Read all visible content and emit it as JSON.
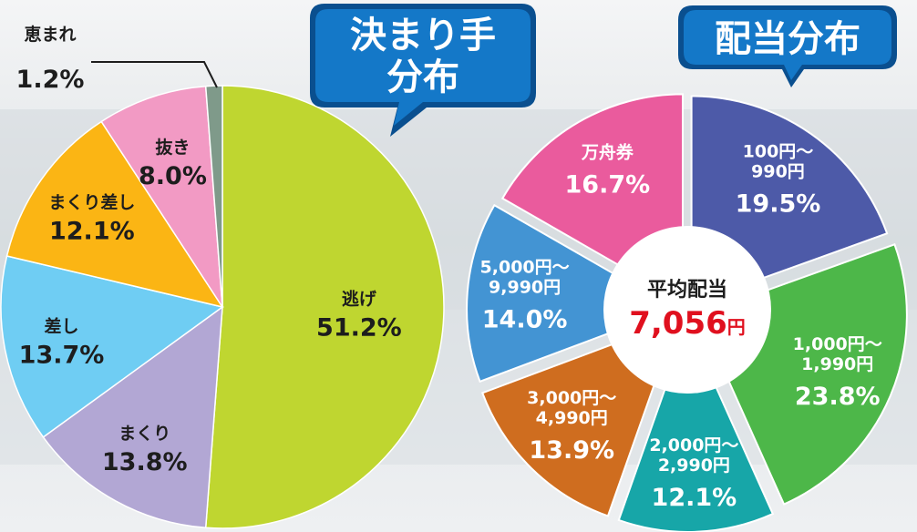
{
  "colors": {
    "bubble": "#1478c8",
    "bubble_dark": "#0a4f8f",
    "background": "#eef0f2",
    "center_value": "#e0101e"
  },
  "chart_data": [
    {
      "type": "pie",
      "title": "決まり手分布",
      "title_lines": [
        "決まり手",
        "分布"
      ],
      "slices": [
        {
          "label": "逃げ",
          "value": 51.2,
          "display": "51.2%",
          "color": "#bfd630"
        },
        {
          "label": "まくり",
          "value": 13.8,
          "display": "13.8%",
          "color": "#b2a7d4"
        },
        {
          "label": "差し",
          "value": 13.7,
          "display": "13.7%",
          "color": "#6fcdf3"
        },
        {
          "label": "まくり差し",
          "value": 12.1,
          "display": "12.1%",
          "color": "#fbb514"
        },
        {
          "label": "抜き",
          "value": 8.0,
          "display": "8.0%",
          "color": "#f29ac4"
        },
        {
          "label": "恵まれ",
          "value": 1.2,
          "display": "1.2%",
          "color": "#7f9a8a"
        }
      ]
    },
    {
      "type": "pie",
      "title": "配当分布",
      "center_label": "平均配当",
      "center_value": "7,056",
      "center_unit": "円",
      "slices": [
        {
          "label": "100円～ 990円",
          "label_lines": [
            "100円～",
            "990円"
          ],
          "value": 19.5,
          "display": "19.5%",
          "color": "#4d5aa8"
        },
        {
          "label": "1,000円～ 1,990円",
          "label_lines": [
            "1,000円～",
            "1,990円"
          ],
          "value": 23.8,
          "display": "23.8%",
          "color": "#4db749"
        },
        {
          "label": "2,000円～ 2,990円",
          "label_lines": [
            "2,000円～",
            "2,990円"
          ],
          "value": 12.1,
          "display": "12.1%",
          "color": "#17a6a8"
        },
        {
          "label": "3,000円～ 4,990円",
          "label_lines": [
            "3,000円～",
            "4,990円"
          ],
          "value": 13.9,
          "display": "13.9%",
          "color": "#cf6d1f"
        },
        {
          "label": "5,000円～ 9,990円",
          "label_lines": [
            "5,000円～",
            "9,990円"
          ],
          "value": 14.0,
          "display": "14.0%",
          "color": "#4394d3"
        },
        {
          "label": "万舟券",
          "label_lines": [
            "万舟券"
          ],
          "value": 16.7,
          "display": "16.7%",
          "color": "#ea5b9d"
        }
      ]
    }
  ]
}
